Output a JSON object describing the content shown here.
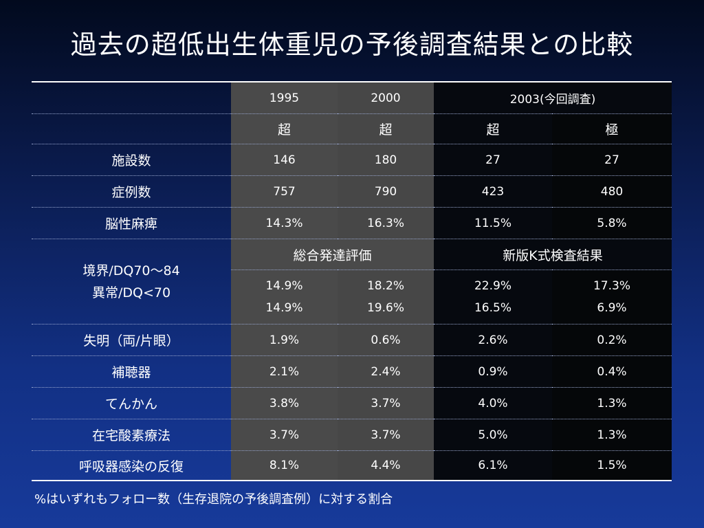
{
  "title": "過去の超低出生体重児の予後調査結果との比較",
  "header": {
    "y1995": "1995",
    "y2000": "2000",
    "y2003": "2003(今回調査)",
    "cho1": "超",
    "cho2": "超",
    "cho3": "超",
    "goku": "極"
  },
  "rows": {
    "facilities": {
      "label": "施設数",
      "v": [
        "146",
        "180",
        "27",
        "27"
      ]
    },
    "cases": {
      "label": "症例数",
      "v": [
        "757",
        "790",
        "423",
        "480"
      ]
    },
    "cp": {
      "label": "脳性麻痺",
      "v": [
        "14.3%",
        "16.3%",
        "11.5%",
        "5.8%"
      ]
    },
    "dq_header": {
      "left": "総合発達評価",
      "right": "新版K式検査結果"
    },
    "dq": {
      "label1": "境界/DQ70～84",
      "label2": "異常/DQ<70",
      "v1": [
        "14.9%",
        "18.2%",
        "22.9%",
        "17.3%"
      ],
      "v2": [
        "14.9%",
        "19.6%",
        "16.5%",
        "6.9%"
      ]
    },
    "blind": {
      "label": "失明（両/片眼）",
      "v": [
        "1.9%",
        "0.6%",
        "2.6%",
        "0.2%"
      ]
    },
    "hearing": {
      "label": "補聴器",
      "v": [
        "2.1%",
        "2.4%",
        "0.9%",
        "0.4%"
      ]
    },
    "epilepsy": {
      "label": "てんかん",
      "v": [
        "3.8%",
        "3.7%",
        "4.0%",
        "1.3%"
      ]
    },
    "hot": {
      "label": "在宅酸素療法",
      "v": [
        "3.7%",
        "3.7%",
        "5.0%",
        "1.3%"
      ]
    },
    "resp": {
      "label": "呼吸器感染の反復",
      "v": [
        "8.1%",
        "4.4%",
        "6.1%",
        "1.5%"
      ]
    }
  },
  "footnote": "%はいずれもフォロー数（生存退院の予後調査例）に対する割合"
}
